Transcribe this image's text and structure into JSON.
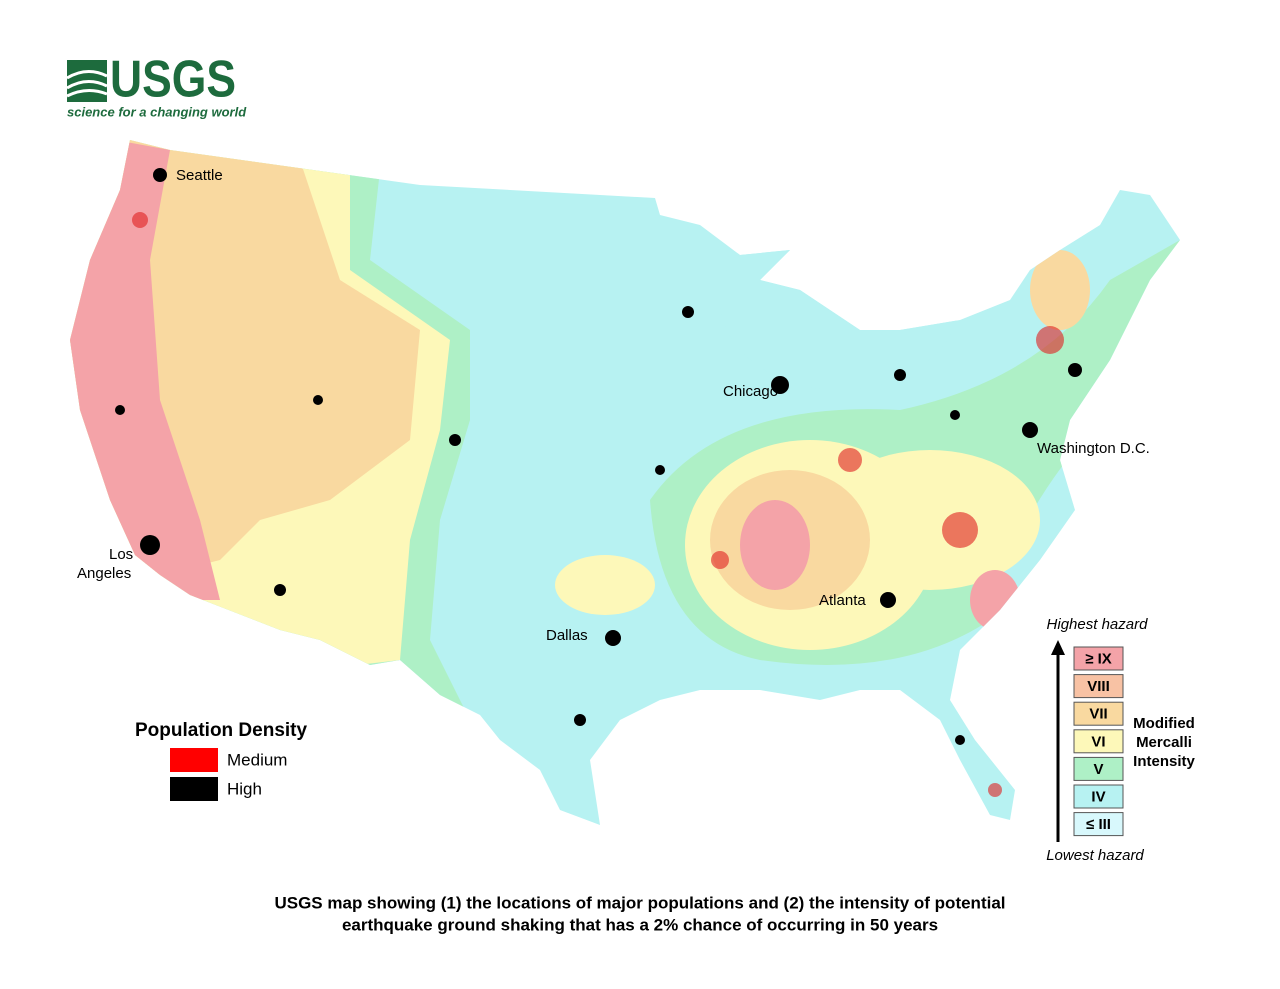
{
  "logo": {
    "name": "USGS",
    "tagline": "science for a changing world"
  },
  "cities": [
    {
      "label": "Seattle"
    },
    {
      "label": "Chicago"
    },
    {
      "label": "Washington D.C."
    },
    {
      "label": "Los"
    },
    {
      "label": "Angeles"
    },
    {
      "label": "Atlanta"
    },
    {
      "label": "Dallas"
    }
  ],
  "population_legend": {
    "title": "Population Density",
    "items": [
      {
        "label": "Medium",
        "color": "#ff0000"
      },
      {
        "label": "High",
        "color": "#000000"
      }
    ]
  },
  "intensity_legend": {
    "top": "Highest hazard",
    "bottom": "Lowest hazard",
    "title": [
      "Modified",
      "Mercalli",
      "Intensity"
    ],
    "levels": [
      {
        "label": "≥ IX",
        "color": "#f4a3a8"
      },
      {
        "label": "VIII",
        "color": "#f8c2a4"
      },
      {
        "label": "VII",
        "color": "#f9d9a0"
      },
      {
        "label": "VI",
        "color": "#fdf8b9"
      },
      {
        "label": "V",
        "color": "#aef0c6"
      },
      {
        "label": "IV",
        "color": "#b7f2f2"
      },
      {
        "label": "≤ III",
        "color": "#d8f8fc"
      }
    ]
  },
  "caption": [
    "USGS map showing (1) the locations of major populations and (2) the intensity of potential",
    "earthquake ground shaking that has a 2% chance of occurring in 50 years"
  ]
}
